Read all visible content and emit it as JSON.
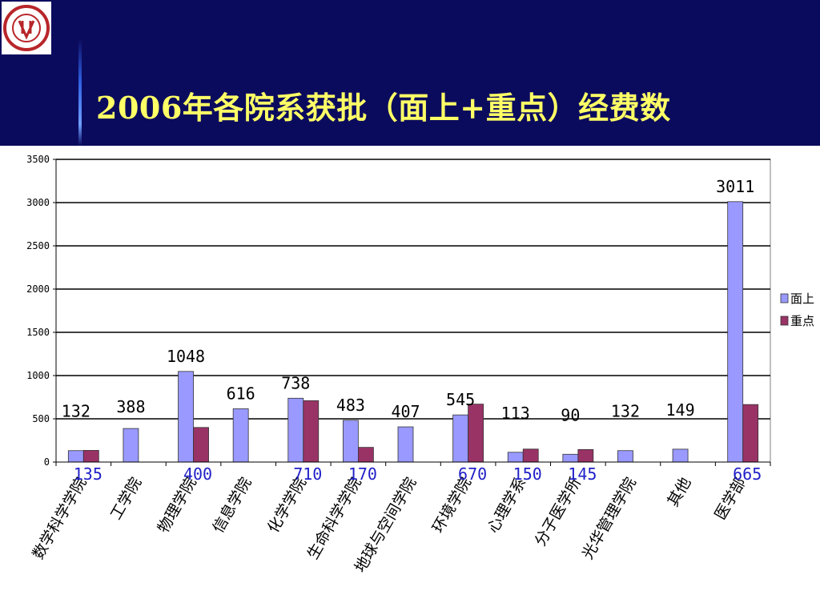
{
  "slide": {
    "title": "2006年各院系获批（面上+重点）经费数",
    "colors": {
      "background": "#0b0b5e",
      "title": "#ffff66",
      "accent_line": "#4a7dff"
    }
  },
  "logo": {
    "icon": "peking-university-seal-icon",
    "text": "PEKING UNIVERSITY 1898"
  },
  "chart_data": {
    "type": "bar",
    "title": "",
    "xlabel": "",
    "ylabel": "",
    "ylim": [
      0,
      3500
    ],
    "yticks": [
      0,
      500,
      1000,
      1500,
      2000,
      2500,
      3000,
      3500
    ],
    "grid": true,
    "legend_position": "right",
    "categories": [
      "数学科学学院",
      "工学院",
      "物理学院",
      "信息学院",
      "化学学院",
      "生命科学学院",
      "地球与空间学院",
      "环境学院",
      "心理学系",
      "分子医学所",
      "光华管理学院",
      "其他",
      "医学部"
    ],
    "series": [
      {
        "name": "面上",
        "color": "#9999ff",
        "values": [
          132,
          388,
          1048,
          616,
          738,
          483,
          407,
          545,
          113,
          90,
          132,
          149,
          3011
        ]
      },
      {
        "name": "重点",
        "color": "#993366",
        "values": [
          135,
          null,
          400,
          null,
          710,
          170,
          null,
          670,
          150,
          145,
          null,
          null,
          665
        ]
      }
    ],
    "data_labels": {
      "series1": [
        "132",
        "388",
        "1048",
        "616",
        "738",
        "483",
        "407",
        "545",
        "113",
        "90",
        "132",
        "149",
        "3011"
      ],
      "series2": [
        "135",
        "",
        "400",
        "",
        "710",
        "170",
        "",
        "670",
        "150",
        "145",
        "",
        "",
        "665"
      ]
    }
  }
}
